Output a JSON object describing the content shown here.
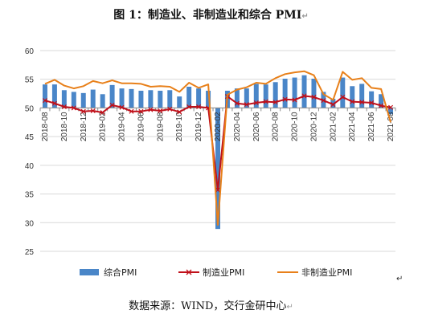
{
  "title": "图 1：制造业、非制造业和综合 PMI",
  "source": "数据来源：WIND，交行金研中心",
  "chart_data": {
    "type": "bar+line",
    "title": "图 1：制造业、非制造业和综合 PMI",
    "xlabel": "",
    "ylabel": "",
    "ylim": [
      25,
      60
    ],
    "yticks": [
      25,
      30,
      35,
      40,
      45,
      50,
      55,
      60
    ],
    "grid": true,
    "legend": "bottom",
    "categories": [
      "2018-08",
      "2018-09",
      "2018-10",
      "2018-11",
      "2018-12",
      "2019-01",
      "2019-02",
      "2019-03",
      "2019-04",
      "2019-05",
      "2019-06",
      "2019-07",
      "2019-08",
      "2019-09",
      "2019-10",
      "2019-11",
      "2019-12",
      "2020-01",
      "2020-02",
      "2020-03",
      "2020-04",
      "2020-05",
      "2020-06",
      "2020-07",
      "2020-08",
      "2020-09",
      "2020-10",
      "2020-11",
      "2020-12",
      "2021-01",
      "2021-02",
      "2021-03",
      "2021-04",
      "2021-05",
      "2021-06",
      "2021-07",
      "2021-08"
    ],
    "x_tick_labels": [
      "2018-08",
      "2018-10",
      "2018-12",
      "2019-02",
      "2019-04",
      "2019-06",
      "2019-08",
      "2019-10",
      "2019-12",
      "2020-02",
      "2020-04",
      "2020-06",
      "2020-08",
      "2020-10",
      "2020-12",
      "2021-02",
      "2021-04",
      "2021-06",
      "2021-08"
    ],
    "series": [
      {
        "name": "综合PMI",
        "kind": "bar",
        "color": "#4a86c8",
        "values": [
          54.1,
          54.1,
          53.1,
          52.8,
          52.6,
          53.2,
          52.4,
          54.0,
          53.4,
          53.3,
          53.0,
          53.1,
          53.0,
          53.1,
          52.0,
          53.7,
          53.4,
          53.0,
          28.9,
          53.0,
          53.4,
          53.4,
          54.2,
          54.1,
          54.5,
          55.1,
          55.3,
          55.7,
          55.1,
          52.8,
          51.6,
          55.3,
          53.8,
          54.2,
          52.9,
          52.4,
          48.9
        ]
      },
      {
        "name": "制造业PMI",
        "kind": "line",
        "color": "#c0101a",
        "values": [
          51.3,
          50.8,
          50.2,
          50.0,
          49.4,
          49.5,
          49.2,
          50.5,
          50.1,
          49.4,
          49.4,
          49.7,
          49.5,
          49.8,
          49.3,
          50.2,
          50.2,
          50.0,
          35.7,
          52.0,
          50.8,
          50.6,
          50.9,
          51.1,
          51.0,
          51.5,
          51.4,
          52.1,
          51.9,
          51.3,
          50.6,
          51.9,
          51.1,
          51.0,
          50.9,
          50.4,
          50.1
        ]
      },
      {
        "name": "非制造业PMI",
        "kind": "line",
        "color": "#e8801a",
        "values": [
          54.2,
          54.9,
          53.9,
          53.4,
          53.8,
          54.7,
          54.3,
          54.8,
          54.3,
          54.3,
          54.2,
          53.7,
          53.8,
          53.7,
          52.8,
          54.4,
          53.5,
          54.1,
          29.6,
          52.3,
          53.2,
          53.6,
          54.4,
          54.2,
          55.2,
          55.9,
          56.2,
          56.4,
          55.7,
          52.4,
          51.4,
          56.3,
          54.9,
          55.2,
          53.5,
          53.3,
          47.5
        ]
      }
    ]
  }
}
